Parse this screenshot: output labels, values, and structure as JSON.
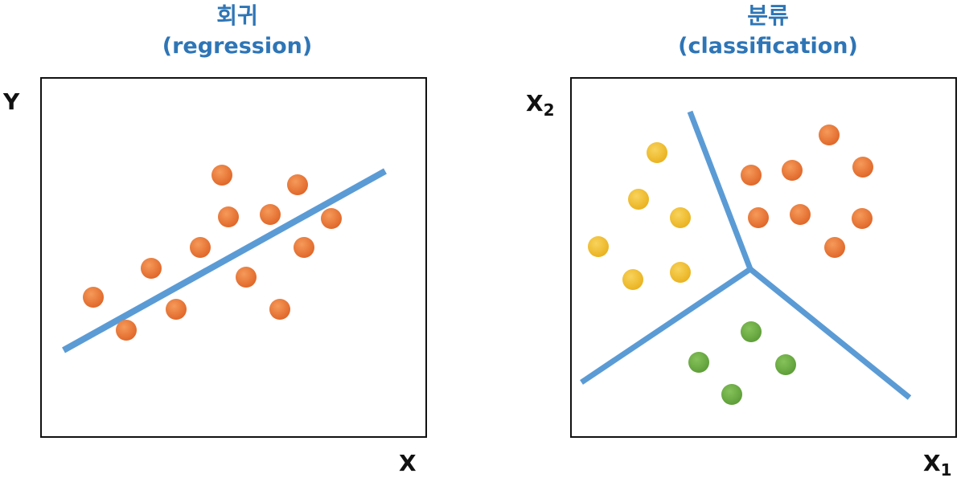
{
  "left_panel": {
    "title": "회귀",
    "subtitle": "(regression)",
    "y_label": "Y",
    "x_label": "X"
  },
  "right_panel": {
    "title": "분류",
    "subtitle": "(classification)",
    "y_label_base": "X",
    "y_label_sub": "2",
    "x_label_base": "X",
    "x_label_sub": "1"
  },
  "colors": {
    "title": "#2e75b6",
    "line": "#5b9bd5",
    "orange": "#ed7d31",
    "yellow": "#f4c136",
    "green": "#70ad47",
    "frame": "#111111"
  }
}
